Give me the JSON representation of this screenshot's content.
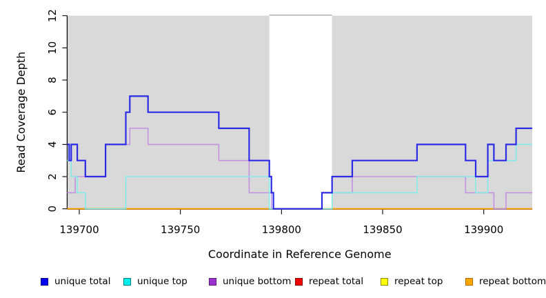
{
  "chart_data": {
    "type": "line",
    "step_mode": "after",
    "title": "",
    "xlabel": "Coordinate in Reference Genome",
    "ylabel": "Read Coverage Depth",
    "xlim": [
      139694,
      139924
    ],
    "ylim": [
      0,
      12
    ],
    "x_ticks": [
      139700,
      139750,
      139800,
      139850,
      139900
    ],
    "y_ticks": [
      0,
      2,
      4,
      6,
      8,
      10,
      12
    ],
    "plot_bg_color": "#d9d9d9",
    "gap_band": {
      "from": 139794,
      "to": 139825,
      "color": "#ffffff",
      "top_edge_color": "#a8a8a8"
    },
    "legend_position": "bottom",
    "grid": "off",
    "series": [
      {
        "name": "unique total",
        "line_color": "#2b2be6",
        "legend_fill": "#0000ee",
        "legend_edge": "#00008b",
        "line_width": 2.2,
        "points": [
          [
            139694,
            4
          ],
          [
            139695,
            3
          ],
          [
            139696,
            4
          ],
          [
            139699,
            3
          ],
          [
            139703,
            2
          ],
          [
            139713,
            4
          ],
          [
            139723,
            6
          ],
          [
            139725,
            7
          ],
          [
            139734,
            6
          ],
          [
            139769,
            5
          ],
          [
            139784,
            3
          ],
          [
            139794,
            2
          ],
          [
            139795,
            1
          ],
          [
            139796,
            0
          ],
          [
            139820,
            1
          ],
          [
            139825,
            2
          ],
          [
            139835,
            3
          ],
          [
            139867,
            4
          ],
          [
            139891,
            3
          ],
          [
            139896,
            2
          ],
          [
            139902,
            4
          ],
          [
            139905,
            3
          ],
          [
            139911,
            4
          ],
          [
            139916,
            5
          ]
        ]
      },
      {
        "name": "unique top",
        "line_color": "#82ebe8",
        "legend_fill": "#00eeee",
        "legend_edge": "#007f7f",
        "line_width": 1.6,
        "points": [
          [
            139694,
            3
          ],
          [
            139696,
            2
          ],
          [
            139699,
            1
          ],
          [
            139703,
            0
          ],
          [
            139723,
            2
          ],
          [
            139794,
            0
          ],
          [
            139825,
            1
          ],
          [
            139867,
            2
          ],
          [
            139896,
            1
          ],
          [
            139902,
            3
          ],
          [
            139916,
            4
          ]
        ]
      },
      {
        "name": "unique bottom",
        "line_color": "#c291e0",
        "legend_fill": "#9a32cd",
        "legend_edge": "#5e1b7e",
        "line_width": 1.6,
        "points": [
          [
            139694,
            1
          ],
          [
            139698,
            2
          ],
          [
            139713,
            4
          ],
          [
            139725,
            5
          ],
          [
            139734,
            4
          ],
          [
            139769,
            3
          ],
          [
            139784,
            1
          ],
          [
            139795,
            0
          ],
          [
            139820,
            1
          ],
          [
            139835,
            2
          ],
          [
            139891,
            1
          ],
          [
            139905,
            0
          ],
          [
            139911,
            1
          ]
        ]
      },
      {
        "name": "repeat total",
        "line_color": "#e00000",
        "legend_fill": "#ee0000",
        "legend_edge": "#8b0000",
        "line_width": 1.6,
        "points": [
          [
            139694,
            0
          ]
        ]
      },
      {
        "name": "repeat top",
        "line_color": "#ffff00",
        "legend_fill": "#ffff00",
        "legend_edge": "#8b8b00",
        "line_width": 1.6,
        "points": [
          [
            139694,
            0
          ]
        ]
      },
      {
        "name": "repeat bottom",
        "line_color": "#ffa500",
        "legend_fill": "#ffa500",
        "legend_edge": "#b36b00",
        "line_width": 1.8,
        "points": [
          [
            139694,
            0
          ]
        ]
      }
    ]
  }
}
